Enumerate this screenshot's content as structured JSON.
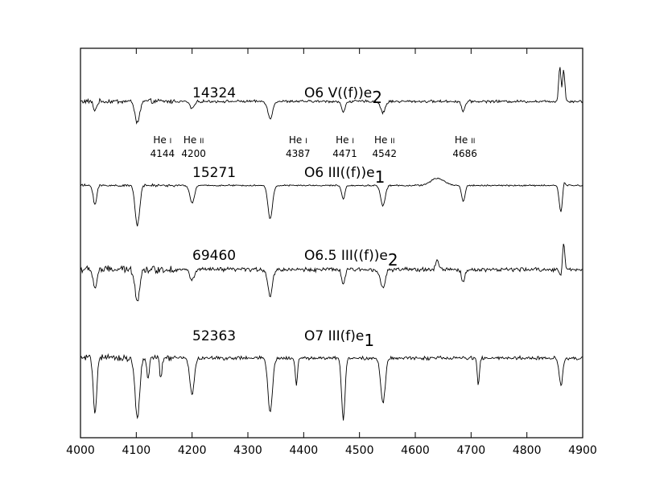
{
  "chart_data": {
    "type": "line",
    "title": "",
    "xlabel": "",
    "ylabel": "",
    "xlim": [
      4000,
      4900
    ],
    "xticks": [
      4000,
      4100,
      4200,
      4300,
      4400,
      4500,
      4600,
      4700,
      4800,
      4900
    ],
    "grid": false,
    "line_ids": [
      {
        "element": "He",
        "ion": "I",
        "wavelength": "4144",
        "x": 4144
      },
      {
        "element": "He",
        "ion": "II",
        "wavelength": "4200",
        "x": 4200
      },
      {
        "element": "He",
        "ion": "I",
        "wavelength": "4387",
        "x": 4387
      },
      {
        "element": "He",
        "ion": "I",
        "wavelength": "4471",
        "x": 4471
      },
      {
        "element": "He",
        "ion": "II",
        "wavelength": "4542",
        "x": 4542
      },
      {
        "element": "He",
        "ion": "II",
        "wavelength": "4686",
        "x": 4686
      }
    ],
    "series": [
      {
        "star": "14324",
        "spectral_type": "O6 V((f))e",
        "spectral_type_sub": "2",
        "continuum": 0.95,
        "features": [
          {
            "x": 4026,
            "depth": -0.1,
            "w": 3
          },
          {
            "x": 4102,
            "depth": -0.25,
            "w": 4
          },
          {
            "x": 4200,
            "depth": -0.08,
            "w": 4
          },
          {
            "x": 4340,
            "depth": -0.2,
            "w": 4
          },
          {
            "x": 4471,
            "depth": -0.13,
            "w": 3
          },
          {
            "x": 4542,
            "depth": -0.13,
            "w": 4
          },
          {
            "x": 4686,
            "depth": -0.11,
            "w": 3
          },
          {
            "x": 4859,
            "depth": 0.4,
            "w": 2
          },
          {
            "x": 4866,
            "depth": 0.36,
            "w": 2
          }
        ],
        "noise": 0.022
      },
      {
        "star": "15271",
        "spectral_type": "O6 III((f))e",
        "spectral_type_sub": "1",
        "continuum": 0.0,
        "features": [
          {
            "x": 4026,
            "depth": -0.22,
            "w": 3
          },
          {
            "x": 4102,
            "depth": -0.45,
            "w": 4
          },
          {
            "x": 4200,
            "depth": -0.2,
            "w": 4
          },
          {
            "x": 4340,
            "depth": -0.38,
            "w": 4
          },
          {
            "x": 4471,
            "depth": -0.15,
            "w": 3
          },
          {
            "x": 4542,
            "depth": -0.23,
            "w": 4
          },
          {
            "x": 4640,
            "depth": 0.08,
            "w": 12
          },
          {
            "x": 4686,
            "depth": -0.18,
            "w": 3
          },
          {
            "x": 4861,
            "depth": -0.3,
            "w": 3
          },
          {
            "x": 4866,
            "depth": 0.08,
            "w": 2
          }
        ],
        "noise": 0.012
      },
      {
        "star": "69460",
        "spectral_type": "O6.5 III((f))e",
        "spectral_type_sub": "2",
        "continuum": -0.95,
        "features": [
          {
            "x": 4026,
            "depth": -0.22,
            "w": 3
          },
          {
            "x": 4102,
            "depth": -0.35,
            "w": 4
          },
          {
            "x": 4200,
            "depth": -0.12,
            "w": 4
          },
          {
            "x": 4340,
            "depth": -0.3,
            "w": 4
          },
          {
            "x": 4471,
            "depth": -0.16,
            "w": 3
          },
          {
            "x": 4542,
            "depth": -0.22,
            "w": 4
          },
          {
            "x": 4640,
            "depth": 0.1,
            "w": 3
          },
          {
            "x": 4686,
            "depth": -0.14,
            "w": 3
          },
          {
            "x": 4861,
            "depth": -0.08,
            "w": 2
          },
          {
            "x": 4866,
            "depth": 0.3,
            "w": 2
          }
        ],
        "noise": 0.035
      },
      {
        "star": "52363",
        "spectral_type": "O7 III(f)e",
        "spectral_type_sub": "1",
        "continuum": -1.95,
        "features": [
          {
            "x": 4026,
            "depth": -0.62,
            "w": 3
          },
          {
            "x": 4102,
            "depth": -0.7,
            "w": 4
          },
          {
            "x": 4121,
            "depth": -0.25,
            "w": 2
          },
          {
            "x": 4144,
            "depth": -0.22,
            "w": 2
          },
          {
            "x": 4200,
            "depth": -0.4,
            "w": 4
          },
          {
            "x": 4340,
            "depth": -0.62,
            "w": 4
          },
          {
            "x": 4387,
            "depth": -0.3,
            "w": 2
          },
          {
            "x": 4471,
            "depth": -0.7,
            "w": 3
          },
          {
            "x": 4542,
            "depth": -0.52,
            "w": 4
          },
          {
            "x": 4713,
            "depth": -0.3,
            "w": 2
          },
          {
            "x": 4861,
            "depth": -0.32,
            "w": 3
          }
        ],
        "noise": 0.03
      }
    ]
  }
}
